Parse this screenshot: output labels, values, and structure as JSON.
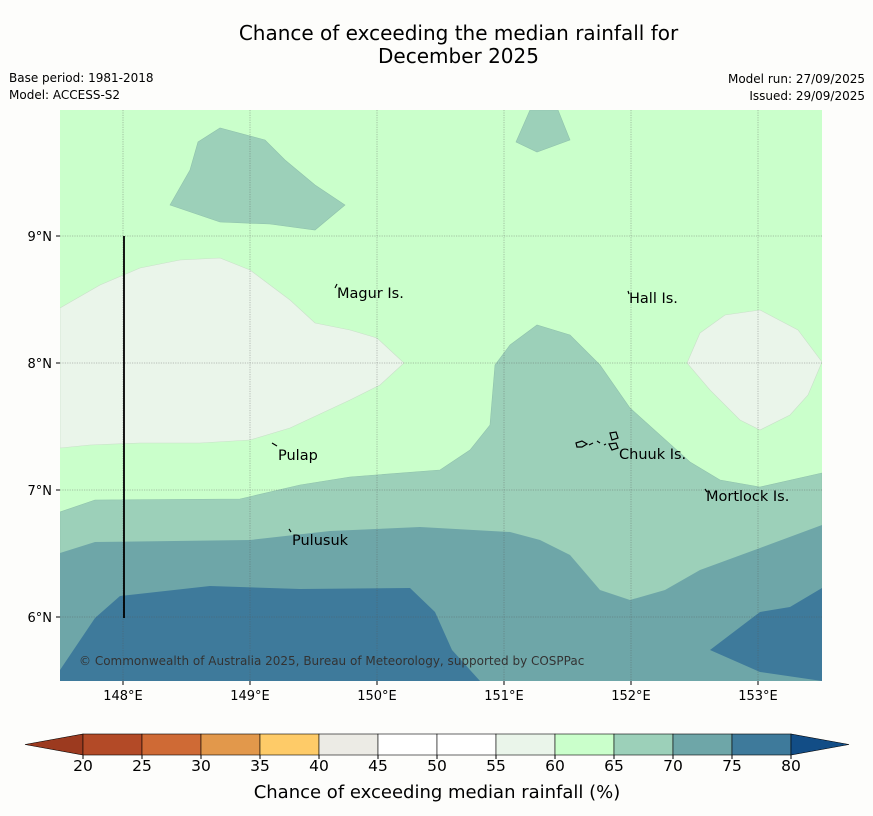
{
  "title_line1": "Chance of exceeding the median rainfall for",
  "title_line2": "December 2025",
  "meta_left": {
    "base_period": "Base period: 1981-2018",
    "model": "Model: ACCESS-S2"
  },
  "meta_right": {
    "model_run": "Model run: 27/09/2025",
    "issued": "Issued: 29/09/2025"
  },
  "map": {
    "lon_ticks": [
      "148°E",
      "149°E",
      "150°E",
      "151°E",
      "152°E",
      "153°E"
    ],
    "lat_ticks": [
      "9°N",
      "8°N",
      "7°N",
      "6°N"
    ],
    "places": [
      "Magur Is.",
      "Hall Is.",
      "Pulap",
      "Chuuk Is.",
      "Mortlock Is.",
      "Pulusuk"
    ],
    "copyright": "© Commonwealth of Australia 2025, Bureau of Meteorology, supported by COSPPac"
  },
  "colorbar": {
    "ticks": [
      "20",
      "25",
      "30",
      "35",
      "40",
      "45",
      "50",
      "55",
      "60",
      "65",
      "70",
      "75",
      "80"
    ],
    "colors": [
      "#b34a27",
      "#cf6a35",
      "#e2984b",
      "#fecb68",
      "#ecebe5",
      "#ffffff",
      "#ffffff",
      "#eaf5ea",
      "#caffcb",
      "#9cd0b9",
      "#6ea6a8",
      "#3e7a9b"
    ],
    "under_color": "#9c3a1f",
    "over_color": "#124d86",
    "label": "Chance of exceeding median rainfall (%)"
  }
}
